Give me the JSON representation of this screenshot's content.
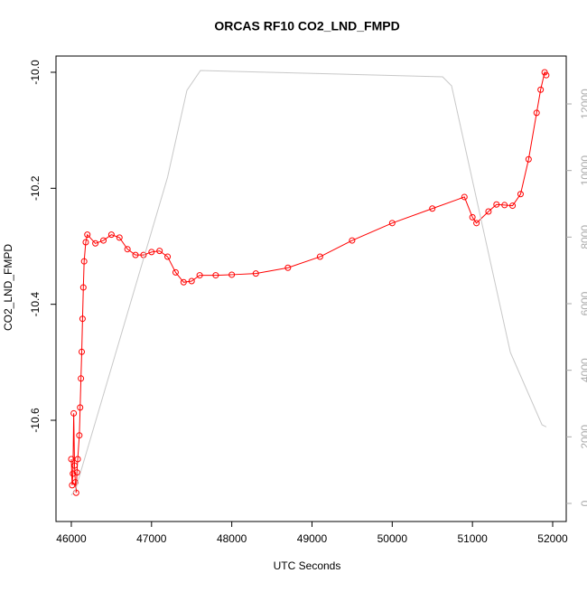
{
  "chart_data": {
    "type": "line",
    "title": "ORCAS RF10 CO2_LND_FMPD",
    "x_label": "UTC Seconds",
    "y_label": "CO2_LND_FMPD",
    "xlim": [
      45809,
      52169
    ],
    "xticks": [
      46000,
      47000,
      48000,
      49000,
      50000,
      51000,
      52000
    ],
    "ylim": [
      -10.7745,
      -9.972
    ],
    "yticks": [
      {
        "value": -10.6,
        "label": "-10.6"
      },
      {
        "value": -10.4,
        "label": "-10.4"
      },
      {
        "value": -10.2,
        "label": "-10.2"
      },
      {
        "value": -10,
        "label": "-10.0"
      }
    ],
    "y2lim": [
      -543,
      13439
    ],
    "y2ticks": [
      0,
      2000,
      4000,
      6000,
      8000,
      10000,
      12000
    ],
    "series": [
      {
        "color": "#ff0000",
        "x": [
          46000,
          46010,
          46020,
          46030,
          46040,
          46050,
          46060,
          46070,
          46080,
          46100,
          46110,
          46120,
          46130,
          46140,
          46150,
          46160,
          46180,
          46200,
          46300,
          46400,
          46500,
          46600,
          46700,
          46800,
          46900,
          47000,
          47100,
          47200,
          47300,
          47400,
          47500,
          47600,
          47800,
          48000,
          48300,
          48700,
          49100,
          49500,
          50000,
          50500,
          50900,
          51000,
          51050,
          51200,
          51300,
          51400,
          51500,
          51600,
          51700,
          51800,
          51850,
          51900,
          51920
        ],
        "values": [
          -10.667,
          -10.712,
          -10.692,
          -10.588,
          -10.678,
          -10.707,
          -10.725,
          -10.69,
          -10.667,
          -10.626,
          -10.578,
          -10.528,
          -10.482,
          -10.425,
          -10.371,
          -10.326,
          -10.293,
          -10.28,
          -10.295,
          -10.29,
          -10.28,
          -10.285,
          -10.305,
          -10.315,
          -10.315,
          -10.31,
          -10.308,
          -10.318,
          -10.345,
          -10.362,
          -10.36,
          -10.35,
          -10.35,
          -10.349,
          -10.347,
          -10.337,
          -10.318,
          -10.29,
          -10.26,
          -10.235,
          -10.215,
          -10.25,
          -10.26,
          -10.24,
          -10.228,
          -10.229,
          -10.23,
          -10.21,
          -10.15,
          -10.07,
          -10.03,
          -10.0,
          -10.005
        ]
      },
      {
        "color": "#c8c8c8",
        "axis": "y2",
        "x": [
          46000,
          46050,
          47200,
          47441,
          47610,
          50628,
          50740,
          51473,
          51867,
          51920
        ],
        "values": [
          250,
          400,
          9800,
          12409,
          13005,
          12815,
          12543,
          4534,
          2362,
          2300
        ]
      }
    ]
  }
}
